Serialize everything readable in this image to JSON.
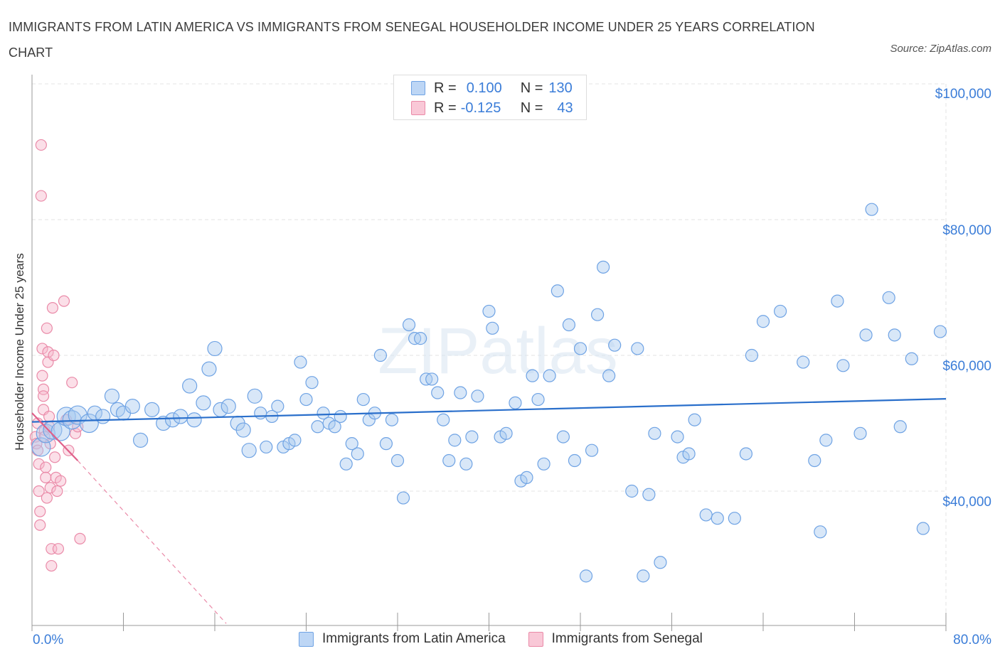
{
  "title": "IMMIGRANTS FROM LATIN AMERICA VS IMMIGRANTS FROM SENEGAL HOUSEHOLDER INCOME UNDER 25 YEARS CORRELATION CHART",
  "source": "Source: ZipAtlas.com",
  "watermark": "ZIPatlas",
  "legend": {
    "series1": {
      "r_label": "R =",
      "r_value": "0.100",
      "n_label": "N =",
      "n_value": "130"
    },
    "series2": {
      "r_label": "R =",
      "r_value": "-0.125",
      "n_label": "N =",
      "n_value": "43"
    }
  },
  "colors": {
    "series1_fill": "#a9c9f0",
    "series1_stroke": "#6fa3e4",
    "series1_line": "#2a6fcb",
    "series2_fill": "#f6b8cb",
    "series2_stroke": "#ea8aa8",
    "series2_line": "#e0608a",
    "accent_text": "#3b7dd8"
  },
  "chart_data": {
    "type": "scatter",
    "title": "IMMIGRANTS FROM LATIN AMERICA VS IMMIGRANTS FROM SENEGAL HOUSEHOLDER INCOME UNDER 25 YEARS CORRELATION CHART",
    "xlabel": "",
    "ylabel": "Householder Income Under 25 years",
    "x_tick_labels": [
      "0.0%",
      "80.0%"
    ],
    "y_tick_labels": [
      "$100,000",
      "$80,000",
      "$60,000",
      "$40,000"
    ],
    "xlim": [
      0,
      80
    ],
    "ylim": [
      20000,
      100000
    ],
    "grid": true,
    "legend_position": "top-center",
    "series": [
      {
        "name": "Immigrants from Latin America",
        "r": 0.1,
        "n": 130,
        "trend": {
          "x": [
            0,
            80
          ],
          "y": [
            50200,
            53600
          ]
        },
        "points": [
          [
            0.8,
            46500
          ],
          [
            1.2,
            48500
          ],
          [
            1.8,
            49000
          ],
          [
            2.5,
            48800
          ],
          [
            3.0,
            51000
          ],
          [
            3.5,
            50500
          ],
          [
            4.0,
            51200
          ],
          [
            5.0,
            50000
          ],
          [
            5.5,
            51500
          ],
          [
            6.2,
            51000
          ],
          [
            7.0,
            54000
          ],
          [
            7.5,
            52000
          ],
          [
            8.0,
            51500
          ],
          [
            8.8,
            52500
          ],
          [
            9.5,
            47500
          ],
          [
            10.5,
            52000
          ],
          [
            11.5,
            50000
          ],
          [
            12.3,
            50500
          ],
          [
            13.0,
            51000
          ],
          [
            13.8,
            55500
          ],
          [
            14.2,
            50500
          ],
          [
            15.0,
            53000
          ],
          [
            15.5,
            58000
          ],
          [
            16.0,
            61000
          ],
          [
            16.5,
            52000
          ],
          [
            17.2,
            52500
          ],
          [
            18.0,
            50000
          ],
          [
            18.5,
            49000
          ],
          [
            19.0,
            46000
          ],
          [
            19.5,
            54000
          ],
          [
            20.0,
            51500
          ],
          [
            20.5,
            46500
          ],
          [
            21.0,
            51000
          ],
          [
            21.5,
            52500
          ],
          [
            22.0,
            46500
          ],
          [
            22.5,
            47000
          ],
          [
            23.0,
            47500
          ],
          [
            23.5,
            59000
          ],
          [
            24.0,
            53500
          ],
          [
            24.5,
            56000
          ],
          [
            25.0,
            49500
          ],
          [
            25.5,
            51500
          ],
          [
            26.0,
            50000
          ],
          [
            26.5,
            49500
          ],
          [
            27.0,
            51000
          ],
          [
            27.5,
            44000
          ],
          [
            28.0,
            47000
          ],
          [
            28.5,
            45500
          ],
          [
            29.0,
            53500
          ],
          [
            29.5,
            50500
          ],
          [
            30.0,
            51500
          ],
          [
            30.5,
            60000
          ],
          [
            31.0,
            47000
          ],
          [
            31.5,
            50500
          ],
          [
            32.0,
            44500
          ],
          [
            32.5,
            39000
          ],
          [
            33.0,
            64500
          ],
          [
            33.5,
            62500
          ],
          [
            34.0,
            62500
          ],
          [
            34.5,
            56500
          ],
          [
            35.0,
            56500
          ],
          [
            35.5,
            54500
          ],
          [
            36.0,
            50500
          ],
          [
            36.5,
            44500
          ],
          [
            37.0,
            47500
          ],
          [
            37.5,
            54500
          ],
          [
            38.0,
            44000
          ],
          [
            38.5,
            48000
          ],
          [
            39.0,
            54000
          ],
          [
            40.0,
            66500
          ],
          [
            40.3,
            64000
          ],
          [
            41.0,
            48000
          ],
          [
            41.5,
            48500
          ],
          [
            42.3,
            53000
          ],
          [
            42.8,
            41500
          ],
          [
            43.3,
            42000
          ],
          [
            43.8,
            57000
          ],
          [
            44.3,
            53500
          ],
          [
            44.8,
            44000
          ],
          [
            45.3,
            57000
          ],
          [
            46.0,
            69500
          ],
          [
            46.5,
            48000
          ],
          [
            47.0,
            64500
          ],
          [
            47.5,
            44500
          ],
          [
            48.0,
            61000
          ],
          [
            48.5,
            27500
          ],
          [
            49.0,
            46000
          ],
          [
            49.5,
            66000
          ],
          [
            50.0,
            73000
          ],
          [
            50.5,
            57000
          ],
          [
            51.0,
            61500
          ],
          [
            52.5,
            40000
          ],
          [
            53.0,
            61000
          ],
          [
            53.5,
            27500
          ],
          [
            54.0,
            39500
          ],
          [
            54.5,
            48500
          ],
          [
            55.0,
            29500
          ],
          [
            56.5,
            48000
          ],
          [
            57.0,
            45000
          ],
          [
            57.5,
            45500
          ],
          [
            58.0,
            50500
          ],
          [
            59.0,
            36500
          ],
          [
            60.0,
            36000
          ],
          [
            61.5,
            36000
          ],
          [
            62.5,
            45500
          ],
          [
            63.0,
            60000
          ],
          [
            64.0,
            65000
          ],
          [
            65.5,
            66500
          ],
          [
            67.5,
            59000
          ],
          [
            68.5,
            44500
          ],
          [
            69.0,
            34000
          ],
          [
            69.5,
            47500
          ],
          [
            70.5,
            68000
          ],
          [
            71.0,
            58500
          ],
          [
            72.5,
            48500
          ],
          [
            73.0,
            63000
          ],
          [
            73.5,
            81500
          ],
          [
            75.0,
            68500
          ],
          [
            75.5,
            63000
          ],
          [
            76.0,
            49500
          ],
          [
            77.0,
            59500
          ],
          [
            78.0,
            34500
          ],
          [
            79.5,
            63500
          ]
        ]
      },
      {
        "name": "Immigrants from Senegal",
        "r": -0.125,
        "n": 43,
        "trend": {
          "x": [
            0,
            4
          ],
          "y": [
            51500,
            44500
          ]
        },
        "trend_dashed": {
          "x": [
            4,
            17
          ],
          "y": [
            44500,
            20500
          ]
        },
        "points": [
          [
            0.3,
            48000
          ],
          [
            0.4,
            47000
          ],
          [
            0.5,
            50000
          ],
          [
            0.5,
            46000
          ],
          [
            0.6,
            44000
          ],
          [
            0.6,
            40000
          ],
          [
            0.7,
            37000
          ],
          [
            0.7,
            35000
          ],
          [
            0.8,
            91000
          ],
          [
            0.8,
            83500
          ],
          [
            0.9,
            61000
          ],
          [
            0.9,
            57000
          ],
          [
            1.0,
            55000
          ],
          [
            1.0,
            54000
          ],
          [
            1.0,
            52000
          ],
          [
            1.1,
            49000
          ],
          [
            1.1,
            48000
          ],
          [
            1.2,
            43500
          ],
          [
            1.2,
            42000
          ],
          [
            1.3,
            39000
          ],
          [
            1.3,
            64000
          ],
          [
            1.4,
            60500
          ],
          [
            1.4,
            59000
          ],
          [
            1.5,
            51000
          ],
          [
            1.5,
            49500
          ],
          [
            1.6,
            47000
          ],
          [
            1.6,
            40500
          ],
          [
            1.7,
            31500
          ],
          [
            1.7,
            29000
          ],
          [
            1.8,
            67000
          ],
          [
            1.9,
            60000
          ],
          [
            2.0,
            45000
          ],
          [
            2.1,
            42000
          ],
          [
            2.2,
            40000
          ],
          [
            2.3,
            31500
          ],
          [
            2.5,
            41500
          ],
          [
            2.8,
            68000
          ],
          [
            3.0,
            50500
          ],
          [
            3.2,
            46000
          ],
          [
            3.5,
            56000
          ],
          [
            3.8,
            48500
          ],
          [
            4.0,
            49500
          ],
          [
            4.2,
            33000
          ]
        ]
      }
    ]
  }
}
